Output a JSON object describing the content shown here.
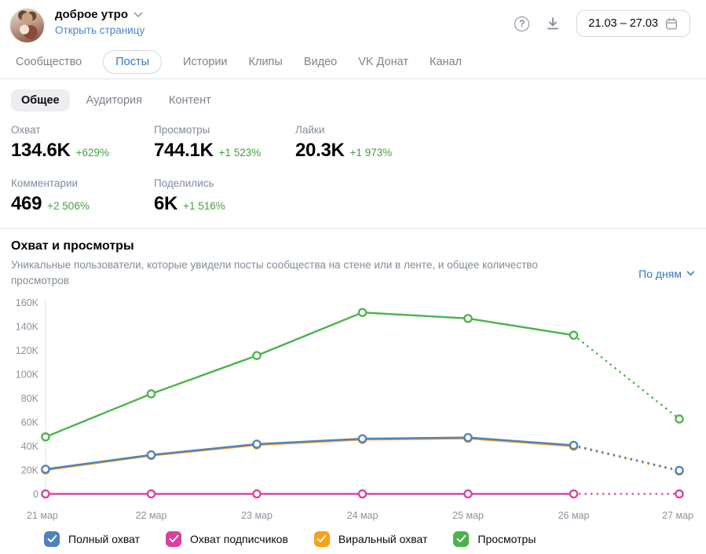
{
  "header": {
    "community_name": "доброе утро",
    "open_page_link": "Открыть страницу",
    "date_range": "21.03 – 27.03"
  },
  "tabs": [
    {
      "label": "Сообщество",
      "active": false
    },
    {
      "label": "Посты",
      "active": true
    },
    {
      "label": "Истории",
      "active": false
    },
    {
      "label": "Клипы",
      "active": false
    },
    {
      "label": "Видео",
      "active": false
    },
    {
      "label": "VK Донат",
      "active": false
    },
    {
      "label": "Канал",
      "active": false
    }
  ],
  "subtabs": [
    {
      "label": "Общее",
      "active": true
    },
    {
      "label": "Аудитория",
      "active": false
    },
    {
      "label": "Контент",
      "active": false
    }
  ],
  "stats": [
    {
      "label": "Охват",
      "value": "134.6K",
      "delta": "+629%"
    },
    {
      "label": "Просмотры",
      "value": "744.1K",
      "delta": "+1 523%"
    },
    {
      "label": "Лайки",
      "value": "20.3K",
      "delta": "+1 973%"
    },
    {
      "label": "Комментарии",
      "value": "469",
      "delta": "+2 506%"
    },
    {
      "label": "Поделились",
      "value": "6K",
      "delta": "+1 516%"
    }
  ],
  "chart_section": {
    "title": "Охват и просмотры",
    "subtitle": "Уникальные пользователи, которые увидели посты сообщества на стене или в ленте, и общее количество просмотров",
    "granularity": "По дням"
  },
  "chart_data": {
    "type": "line",
    "title": "Охват и просмотры",
    "categories": [
      "21 мар",
      "22 мар",
      "23 мар",
      "24 мар",
      "25 мар",
      "26 мар",
      "27 мар"
    ],
    "series": [
      {
        "name": "Полный охват",
        "color": "#5181b8",
        "z": 3,
        "values": [
          21000,
          33000,
          42000,
          46500,
          47500,
          41000,
          20000
        ]
      },
      {
        "name": "Охват подписчиков",
        "color": "#d6419e",
        "z": 2,
        "values": [
          400,
          400,
          400,
          400,
          400,
          400,
          400
        ]
      },
      {
        "name": "Виральный охват",
        "color": "#f8a01c",
        "z": 1,
        "values": [
          20400,
          32400,
          41300,
          45800,
          46800,
          40200,
          19400
        ]
      },
      {
        "name": "Просмотры",
        "color": "#4bb34b",
        "z": 4,
        "values": [
          48000,
          84000,
          116000,
          152000,
          147000,
          133000,
          63000
        ]
      }
    ],
    "ylim": [
      0,
      160000
    ],
    "ytick_step": 20000,
    "dashed_from_index": 5,
    "grid": false,
    "legend_position": "bottom"
  },
  "legend": [
    {
      "label": "Полный охват",
      "color": "#5181b8",
      "checked": true
    },
    {
      "label": "Охват подписчиков",
      "color": "#d6419e",
      "checked": true
    },
    {
      "label": "Виральный охват",
      "color": "#f8a01c",
      "checked": true
    },
    {
      "label": "Просмотры",
      "color": "#4bb34b",
      "checked": true
    }
  ],
  "colors": {
    "accent_link": "#4986cc",
    "active_tab": "#3776b8",
    "delta_green": "#44a144",
    "axis_text": "#8a939e",
    "axis_line": "#e3e5e8"
  }
}
